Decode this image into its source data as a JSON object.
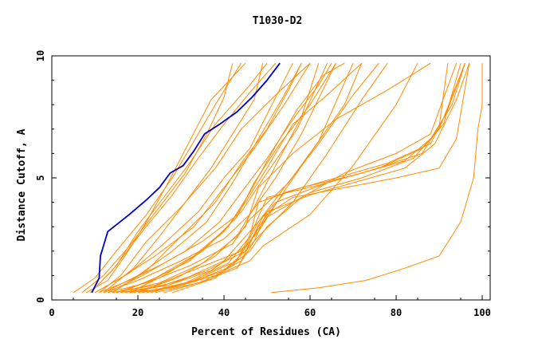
{
  "chart_data": {
    "type": "line",
    "title": "T1030-D2",
    "xlabel": "Percent of Residues (CA)",
    "ylabel": "Distance Cutoff, A",
    "xlim": [
      0,
      100
    ],
    "ylim": [
      0,
      10
    ],
    "x_ticks": [
      "0",
      "20",
      "40",
      "60",
      "80",
      "100"
    ],
    "y_ticks": [
      "0",
      "5",
      "10"
    ],
    "grid": false,
    "legend": "none",
    "colors": {
      "highlight": "#0000cc",
      "others": "#ff8c00"
    },
    "highlight_series": {
      "points": [
        [
          9.3,
          0.3
        ],
        [
          11.0,
          0.9
        ],
        [
          11.3,
          1.8
        ],
        [
          13.0,
          2.8
        ],
        [
          18.0,
          3.5
        ],
        [
          22.0,
          4.1
        ],
        [
          25.0,
          4.6
        ],
        [
          27.5,
          5.2
        ],
        [
          30.5,
          5.5
        ],
        [
          33.0,
          6.1
        ],
        [
          35.5,
          6.8
        ],
        [
          39.0,
          7.2
        ],
        [
          43.0,
          7.7
        ],
        [
          46.5,
          8.3
        ],
        [
          50.0,
          9.0
        ],
        [
          53.0,
          9.7
        ]
      ]
    },
    "other_series": [
      {
        "points": [
          [
            5,
            0.3
          ],
          [
            10,
            0.9
          ],
          [
            15,
            2.0
          ],
          [
            22,
            3.5
          ],
          [
            28,
            5.0
          ],
          [
            33,
            6.5
          ],
          [
            38,
            8.0
          ],
          [
            44,
            9.7
          ]
        ]
      },
      {
        "points": [
          [
            7,
            0.3
          ],
          [
            12,
            1.0
          ],
          [
            18,
            2.2
          ],
          [
            25,
            3.8
          ],
          [
            31,
            5.2
          ],
          [
            36,
            6.8
          ],
          [
            40,
            8.3
          ],
          [
            42,
            9.7
          ]
        ]
      },
      {
        "points": [
          [
            9,
            0.3
          ],
          [
            14,
            1.2
          ],
          [
            21,
            2.8
          ],
          [
            28,
            4.3
          ],
          [
            34,
            5.8
          ],
          [
            40,
            7.2
          ],
          [
            46,
            8.5
          ],
          [
            52,
            9.7
          ]
        ]
      },
      {
        "points": [
          [
            10,
            0.3
          ],
          [
            16,
            0.9
          ],
          [
            24,
            1.8
          ],
          [
            33,
            3.0
          ],
          [
            40,
            4.6
          ],
          [
            47,
            6.2
          ],
          [
            54,
            8.0
          ],
          [
            60,
            9.7
          ]
        ]
      },
      {
        "points": [
          [
            11,
            0.3
          ],
          [
            18,
            0.8
          ],
          [
            26,
            1.5
          ],
          [
            35,
            2.4
          ],
          [
            44,
            3.6
          ],
          [
            50,
            5.2
          ],
          [
            57,
            7.0
          ],
          [
            64,
            9.7
          ]
        ]
      },
      {
        "points": [
          [
            12,
            0.3
          ],
          [
            20,
            0.8
          ],
          [
            30,
            1.6
          ],
          [
            40,
            2.5
          ],
          [
            46,
            3.5
          ],
          [
            52,
            5.0
          ],
          [
            58,
            6.8
          ],
          [
            66,
            9.7
          ]
        ]
      },
      {
        "points": [
          [
            13,
            0.3
          ],
          [
            22,
            0.7
          ],
          [
            32,
            1.4
          ],
          [
            42,
            2.3
          ],
          [
            46,
            3.3
          ],
          [
            55,
            4.8
          ],
          [
            62,
            6.5
          ],
          [
            70,
            9.7
          ]
        ]
      },
      {
        "points": [
          [
            14,
            0.3
          ],
          [
            24,
            0.6
          ],
          [
            34,
            1.3
          ],
          [
            44,
            2.0
          ],
          [
            48,
            2.8
          ],
          [
            53,
            4.2
          ],
          [
            60,
            6.0
          ],
          [
            68,
            8.0
          ],
          [
            72,
            9.7
          ]
        ]
      },
      {
        "points": [
          [
            16,
            0.3
          ],
          [
            26,
            0.6
          ],
          [
            36,
            1.2
          ],
          [
            45,
            2.0
          ],
          [
            48,
            2.6
          ],
          [
            56,
            4.0
          ],
          [
            64,
            6.0
          ],
          [
            72,
            8.2
          ],
          [
            78,
            9.7
          ]
        ]
      },
      {
        "points": [
          [
            18,
            0.3
          ],
          [
            28,
            0.5
          ],
          [
            38,
            1.0
          ],
          [
            46,
            1.6
          ],
          [
            49,
            2.2
          ],
          [
            60,
            3.5
          ],
          [
            70,
            5.5
          ],
          [
            80,
            8.0
          ],
          [
            85,
            9.7
          ]
        ]
      },
      {
        "points": [
          [
            10,
            0.3
          ],
          [
            18,
            1.1
          ],
          [
            26,
            2.3
          ],
          [
            34,
            3.6
          ],
          [
            40,
            5.0
          ],
          [
            46,
            6.2
          ],
          [
            50,
            7.6
          ],
          [
            56,
            9.7
          ]
        ]
      },
      {
        "points": [
          [
            12,
            0.3
          ],
          [
            20,
            1.0
          ],
          [
            28,
            2.0
          ],
          [
            36,
            3.2
          ],
          [
            42,
            4.8
          ],
          [
            46,
            6.0
          ],
          [
            50,
            7.2
          ],
          [
            54,
            8.4
          ],
          [
            58,
            9.7
          ]
        ]
      },
      {
        "points": [
          [
            8,
            0.3
          ],
          [
            13,
            0.8
          ],
          [
            17,
            1.8
          ],
          [
            22,
            3.2
          ],
          [
            27,
            4.8
          ],
          [
            32,
            6.5
          ],
          [
            37,
            8.2
          ],
          [
            45,
            9.7
          ]
        ]
      },
      {
        "points": [
          [
            15,
            0.3
          ],
          [
            25,
            0.7
          ],
          [
            35,
            1.5
          ],
          [
            43,
            2.6
          ],
          [
            47,
            3.8
          ],
          [
            52,
            5.5
          ],
          [
            58,
            7.5
          ],
          [
            62,
            9.7
          ]
        ]
      },
      {
        "points": [
          [
            17,
            0.3
          ],
          [
            27,
            0.6
          ],
          [
            37,
            1.2
          ],
          [
            45,
            2.2
          ],
          [
            48,
            3.2
          ],
          [
            54,
            4.6
          ],
          [
            62,
            6.4
          ],
          [
            70,
            8.4
          ],
          [
            76,
            9.7
          ]
        ]
      },
      {
        "points": [
          [
            20,
            0.3
          ],
          [
            30,
            0.6
          ],
          [
            40,
            1.2
          ],
          [
            46,
            2.0
          ],
          [
            50,
            3.0
          ],
          [
            58,
            4.2
          ],
          [
            68,
            5.2
          ],
          [
            80,
            6.0
          ],
          [
            88,
            6.8
          ],
          [
            94,
            9.7
          ]
        ]
      },
      {
        "points": [
          [
            22,
            0.3
          ],
          [
            32,
            0.7
          ],
          [
            42,
            1.4
          ],
          [
            46,
            2.4
          ],
          [
            50,
            3.4
          ],
          [
            60,
            4.4
          ],
          [
            72,
            5.0
          ],
          [
            84,
            5.8
          ],
          [
            90,
            7.0
          ],
          [
            96,
            9.7
          ]
        ]
      },
      {
        "points": [
          [
            19,
            0.3
          ],
          [
            30,
            0.8
          ],
          [
            40,
            1.6
          ],
          [
            46,
            2.8
          ],
          [
            52,
            4.0
          ],
          [
            64,
            4.8
          ],
          [
            76,
            5.4
          ],
          [
            86,
            6.2
          ],
          [
            91,
            7.2
          ],
          [
            95,
            9.7
          ]
        ]
      },
      {
        "points": [
          [
            21,
            0.3
          ],
          [
            31,
            0.7
          ],
          [
            41,
            1.5
          ],
          [
            46,
            2.6
          ],
          [
            48,
            4.0
          ],
          [
            58,
            4.6
          ],
          [
            70,
            5.1
          ],
          [
            82,
            5.7
          ],
          [
            88,
            6.6
          ],
          [
            93,
            8.0
          ],
          [
            96,
            9.7
          ]
        ]
      },
      {
        "points": [
          [
            23,
            0.3
          ],
          [
            33,
            0.8
          ],
          [
            43,
            1.6
          ],
          [
            47,
            3.0
          ],
          [
            50,
            4.2
          ],
          [
            62,
            4.7
          ],
          [
            74,
            5.3
          ],
          [
            86,
            6.0
          ],
          [
            90,
            7.1
          ],
          [
            92,
            9.7
          ]
        ]
      },
      {
        "points": [
          [
            24,
            0.3
          ],
          [
            34,
            0.7
          ],
          [
            43,
            1.3
          ],
          [
            47,
            2.4
          ],
          [
            50,
            3.6
          ],
          [
            60,
            4.3
          ],
          [
            72,
            4.9
          ],
          [
            82,
            5.4
          ],
          [
            89,
            6.4
          ],
          [
            94,
            8.2
          ],
          [
            97,
            9.7
          ]
        ]
      },
      {
        "points": [
          [
            11,
            0.3
          ],
          [
            16,
            1.0
          ],
          [
            22,
            2.4
          ],
          [
            30,
            3.8
          ],
          [
            38,
            5.4
          ],
          [
            44,
            7.0
          ],
          [
            52,
            8.4
          ],
          [
            60,
            9.7
          ]
        ]
      },
      {
        "points": [
          [
            13,
            0.3
          ],
          [
            21,
            1.0
          ],
          [
            31,
            2.0
          ],
          [
            39,
            3.2
          ],
          [
            44,
            4.4
          ],
          [
            50,
            5.8
          ],
          [
            56,
            7.4
          ],
          [
            62,
            8.8
          ],
          [
            65,
            9.7
          ]
        ]
      },
      {
        "points": [
          [
            26,
            0.3
          ],
          [
            36,
            0.8
          ],
          [
            44,
            1.6
          ],
          [
            48,
            3.0
          ],
          [
            54,
            4.4
          ],
          [
            66,
            5.0
          ],
          [
            78,
            5.6
          ],
          [
            88,
            6.4
          ],
          [
            92,
            7.8
          ],
          [
            96,
            9.7
          ]
        ]
      },
      {
        "points": [
          [
            28,
            0.3
          ],
          [
            38,
            0.9
          ],
          [
            45,
            2.0
          ],
          [
            49,
            3.4
          ],
          [
            56,
            4.2
          ],
          [
            68,
            4.6
          ],
          [
            80,
            5.0
          ],
          [
            90,
            5.4
          ],
          [
            94,
            6.6
          ],
          [
            97,
            9.7
          ]
        ]
      },
      {
        "points": [
          [
            14,
            0.3
          ],
          [
            22,
            1.2
          ],
          [
            30,
            2.6
          ],
          [
            38,
            4.0
          ],
          [
            44,
            5.6
          ],
          [
            50,
            7.0
          ],
          [
            55,
            8.6
          ],
          [
            58,
            9.7
          ]
        ]
      },
      {
        "points": [
          [
            9,
            0.3
          ],
          [
            15,
            1.4
          ],
          [
            20,
            2.8
          ],
          [
            26,
            4.2
          ],
          [
            32,
            5.6
          ],
          [
            38,
            7.2
          ],
          [
            46,
            8.8
          ],
          [
            50,
            9.7
          ]
        ]
      },
      {
        "points": [
          [
            16,
            0.3
          ],
          [
            24,
            0.9
          ],
          [
            33,
            1.8
          ],
          [
            41,
            3.0
          ],
          [
            46,
            4.4
          ],
          [
            51,
            6.0
          ],
          [
            57,
            7.8
          ],
          [
            63,
            9.2
          ],
          [
            68,
            9.7
          ]
        ]
      },
      {
        "points": [
          [
            18,
            0.3
          ],
          [
            26,
            1.0
          ],
          [
            35,
            2.0
          ],
          [
            43,
            3.4
          ],
          [
            47,
            4.8
          ],
          [
            53,
            6.4
          ],
          [
            60,
            8.0
          ],
          [
            66,
            9.7
          ]
        ]
      },
      {
        "points": [
          [
            20,
            0.3
          ],
          [
            29,
            0.9
          ],
          [
            38,
            1.8
          ],
          [
            45,
            3.0
          ],
          [
            48,
            4.6
          ],
          [
            56,
            6.0
          ],
          [
            66,
            7.4
          ],
          [
            78,
            8.6
          ],
          [
            88,
            9.7
          ]
        ]
      },
      {
        "points": [
          [
            12,
            0.3
          ],
          [
            19,
            1.3
          ],
          [
            25,
            2.6
          ],
          [
            31,
            4.0
          ],
          [
            37,
            5.4
          ],
          [
            42,
            6.8
          ],
          [
            47,
            8.2
          ],
          [
            49,
            9.7
          ]
        ]
      },
      {
        "points": [
          [
            15,
            0.3
          ],
          [
            23,
            0.8
          ],
          [
            32,
            1.6
          ],
          [
            40,
            2.8
          ],
          [
            45,
            4.0
          ],
          [
            50,
            5.4
          ],
          [
            56,
            7.2
          ],
          [
            64,
            8.4
          ],
          [
            72,
            9.7
          ]
        ]
      },
      {
        "points": [
          [
            51,
            0.3
          ],
          [
            62,
            0.5
          ],
          [
            73,
            0.8
          ],
          [
            82,
            1.3
          ],
          [
            90,
            1.8
          ],
          [
            95,
            3.2
          ],
          [
            98,
            5.0
          ],
          [
            99,
            7.0
          ],
          [
            100,
            8.0
          ],
          [
            100,
            9.7
          ]
        ]
      }
    ]
  }
}
